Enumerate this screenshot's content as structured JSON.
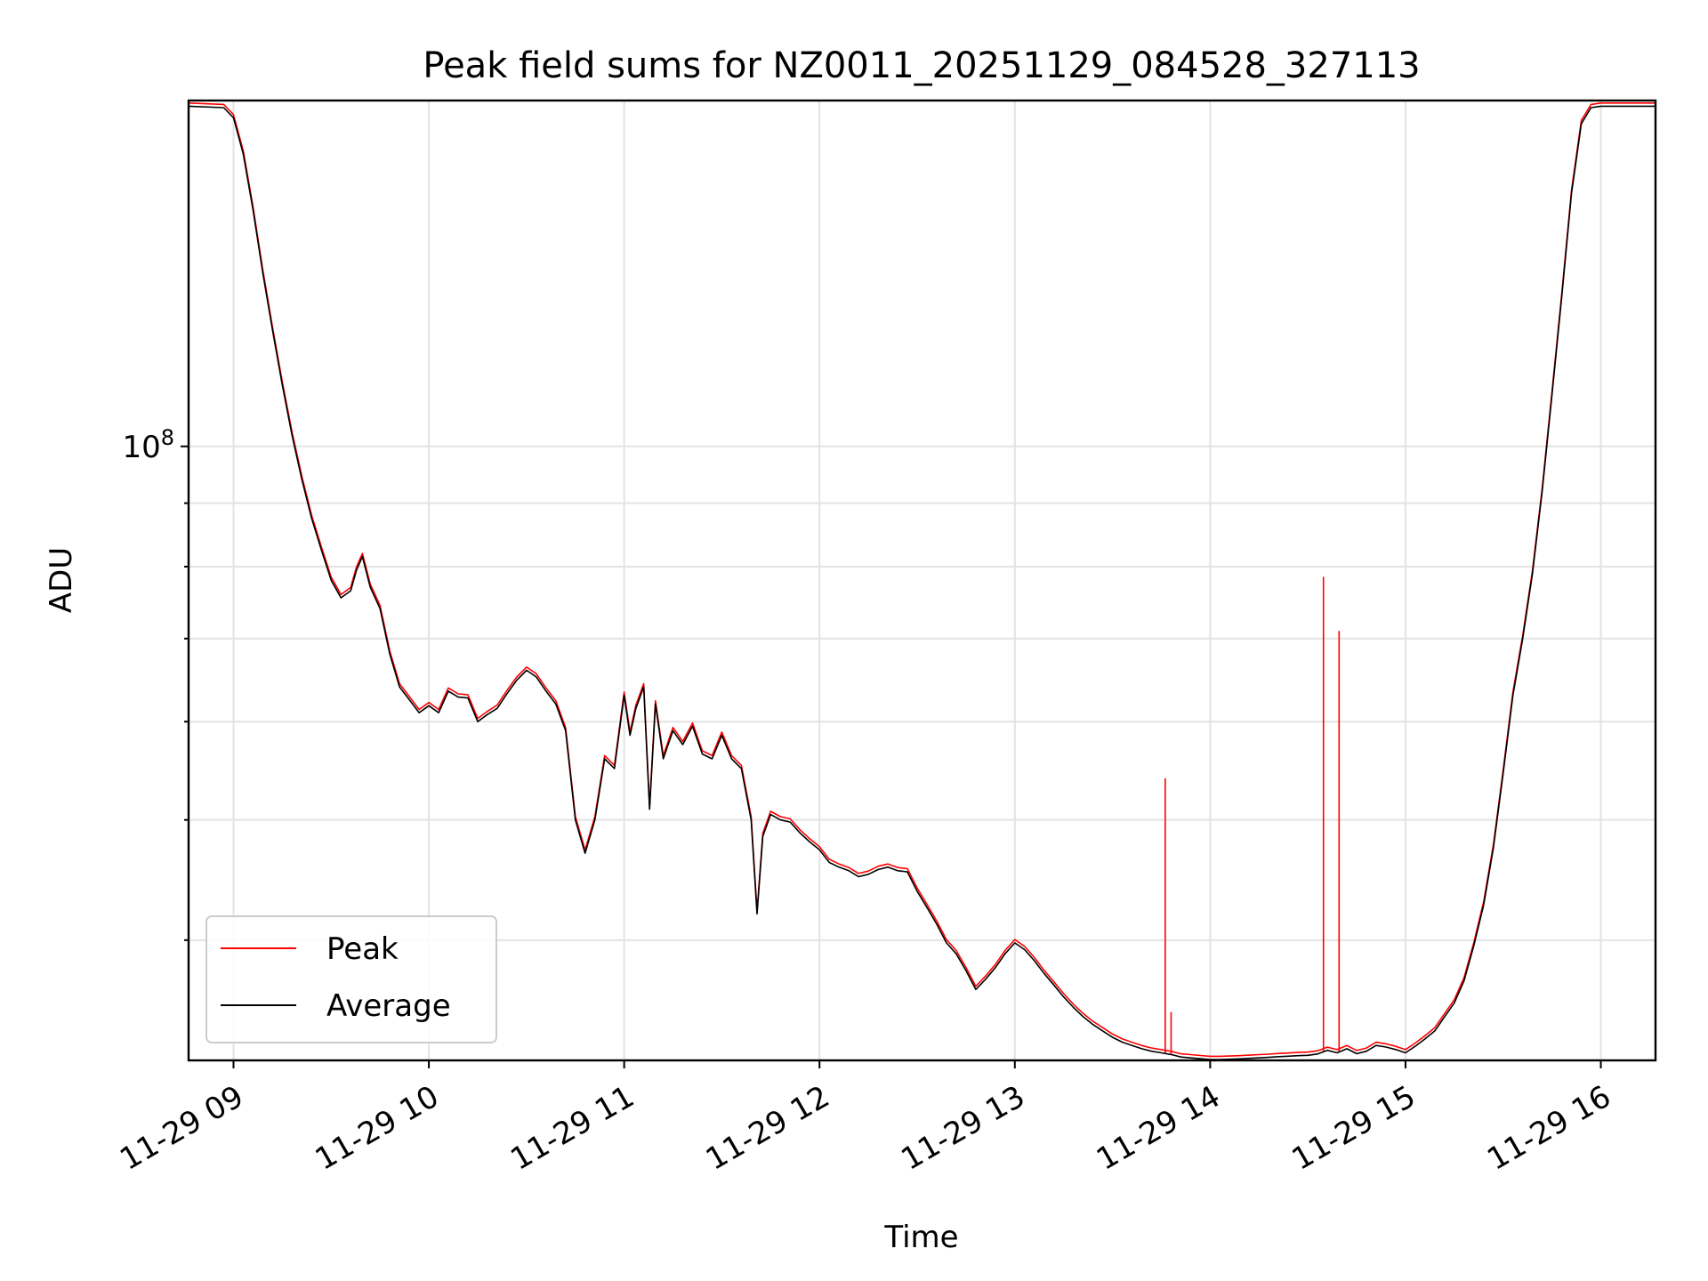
{
  "chart_data": {
    "type": "line",
    "title": "Peak field sums for NZ0011_20251129_084528_327113",
    "xlabel": "Time",
    "ylabel": "ADU",
    "x_ticks": [
      "11-29 09",
      "11-29 10",
      "11-29 11",
      "11-29 12",
      "11-29 13",
      "11-29 14",
      "11-29 15",
      "11-29 16"
    ],
    "x_tick_hours": [
      9,
      10,
      11,
      12,
      13,
      14,
      15,
      16
    ],
    "xlim": [
      8.77,
      16.28
    ],
    "y_scale": "log",
    "ylim": [
      32000000,
      190000000
    ],
    "y_major_ticks": [
      {
        "value": 100000000,
        "base": "10",
        "exp": "8"
      }
    ],
    "y_minor_ticks": [
      40000000,
      50000000,
      60000000,
      70000000,
      80000000,
      90000000
    ],
    "grid": true,
    "legend": {
      "position": "lower-left",
      "entries": [
        "Peak",
        "Average"
      ]
    },
    "colors": {
      "Peak": "#ff0000",
      "Average": "#000000"
    },
    "series": [
      {
        "name": "Average",
        "points": [
          [
            8.77,
            188000000
          ],
          [
            8.95,
            187500000
          ],
          [
            9.0,
            184000000
          ],
          [
            9.05,
            172000000
          ],
          [
            9.1,
            155000000
          ],
          [
            9.15,
            138000000
          ],
          [
            9.2,
            124000000
          ],
          [
            9.25,
            112000000
          ],
          [
            9.3,
            102000000
          ],
          [
            9.35,
            94000000
          ],
          [
            9.4,
            87500000
          ],
          [
            9.45,
            82500000
          ],
          [
            9.5,
            78000000
          ],
          [
            9.55,
            75500000
          ],
          [
            9.6,
            76500000
          ],
          [
            9.63,
            79500000
          ],
          [
            9.66,
            81500000
          ],
          [
            9.7,
            77000000
          ],
          [
            9.75,
            74000000
          ],
          [
            9.8,
            68000000
          ],
          [
            9.85,
            64000000
          ],
          [
            9.9,
            62500000
          ],
          [
            9.95,
            61000000
          ],
          [
            10.0,
            61800000
          ],
          [
            10.05,
            61000000
          ],
          [
            10.1,
            63500000
          ],
          [
            10.15,
            62800000
          ],
          [
            10.2,
            62700000
          ],
          [
            10.25,
            60000000
          ],
          [
            10.3,
            60800000
          ],
          [
            10.35,
            61500000
          ],
          [
            10.4,
            63200000
          ],
          [
            10.45,
            64800000
          ],
          [
            10.5,
            66000000
          ],
          [
            10.55,
            65200000
          ],
          [
            10.6,
            63500000
          ],
          [
            10.65,
            62000000
          ],
          [
            10.7,
            59000000
          ],
          [
            10.75,
            50000000
          ],
          [
            10.8,
            47000000
          ],
          [
            10.85,
            50000000
          ],
          [
            10.9,
            56000000
          ],
          [
            10.95,
            55000000
          ],
          [
            11.0,
            63000000
          ],
          [
            11.03,
            58500000
          ],
          [
            11.06,
            61500000
          ],
          [
            11.1,
            64000000
          ],
          [
            11.13,
            51000000
          ],
          [
            11.16,
            62000000
          ],
          [
            11.2,
            56000000
          ],
          [
            11.25,
            59000000
          ],
          [
            11.3,
            57500000
          ],
          [
            11.35,
            59500000
          ],
          [
            11.4,
            56500000
          ],
          [
            11.45,
            56000000
          ],
          [
            11.5,
            58500000
          ],
          [
            11.55,
            56000000
          ],
          [
            11.6,
            55000000
          ],
          [
            11.65,
            50000000
          ],
          [
            11.68,
            42000000
          ],
          [
            11.71,
            48500000
          ],
          [
            11.75,
            50500000
          ],
          [
            11.8,
            50000000
          ],
          [
            11.85,
            49800000
          ],
          [
            11.9,
            48800000
          ],
          [
            11.95,
            48000000
          ],
          [
            12.0,
            47300000
          ],
          [
            12.05,
            46200000
          ],
          [
            12.1,
            45800000
          ],
          [
            12.15,
            45500000
          ],
          [
            12.2,
            45000000
          ],
          [
            12.25,
            45200000
          ],
          [
            12.3,
            45600000
          ],
          [
            12.35,
            45800000
          ],
          [
            12.4,
            45500000
          ],
          [
            12.45,
            45400000
          ],
          [
            12.5,
            43800000
          ],
          [
            12.55,
            42500000
          ],
          [
            12.6,
            41200000
          ],
          [
            12.65,
            39800000
          ],
          [
            12.7,
            39000000
          ],
          [
            12.75,
            37800000
          ],
          [
            12.8,
            36500000
          ],
          [
            12.85,
            37200000
          ],
          [
            12.9,
            38000000
          ],
          [
            12.95,
            39000000
          ],
          [
            13.0,
            39800000
          ],
          [
            13.05,
            39300000
          ],
          [
            13.1,
            38500000
          ],
          [
            13.15,
            37600000
          ],
          [
            13.2,
            36800000
          ],
          [
            13.25,
            36000000
          ],
          [
            13.3,
            35300000
          ],
          [
            13.35,
            34700000
          ],
          [
            13.4,
            34200000
          ],
          [
            13.45,
            33800000
          ],
          [
            13.5,
            33400000
          ],
          [
            13.55,
            33100000
          ],
          [
            13.6,
            32900000
          ],
          [
            13.65,
            32700000
          ],
          [
            13.7,
            32550000
          ],
          [
            13.75,
            32450000
          ],
          [
            13.8,
            32350000
          ],
          [
            13.85,
            32200000
          ],
          [
            13.9,
            32150000
          ],
          [
            13.95,
            32100000
          ],
          [
            14.0,
            32050000
          ],
          [
            14.05,
            32050000
          ],
          [
            14.1,
            32070000
          ],
          [
            14.15,
            32090000
          ],
          [
            14.2,
            32120000
          ],
          [
            14.25,
            32150000
          ],
          [
            14.3,
            32180000
          ],
          [
            14.35,
            32220000
          ],
          [
            14.4,
            32250000
          ],
          [
            14.45,
            32280000
          ],
          [
            14.5,
            32300000
          ],
          [
            14.55,
            32380000
          ],
          [
            14.6,
            32600000
          ],
          [
            14.65,
            32450000
          ],
          [
            14.7,
            32700000
          ],
          [
            14.75,
            32400000
          ],
          [
            14.8,
            32550000
          ],
          [
            14.85,
            32900000
          ],
          [
            14.9,
            32800000
          ],
          [
            14.95,
            32650000
          ],
          [
            15.0,
            32450000
          ],
          [
            15.05,
            32850000
          ],
          [
            15.1,
            33300000
          ],
          [
            15.15,
            33800000
          ],
          [
            15.2,
            34700000
          ],
          [
            15.25,
            35600000
          ],
          [
            15.3,
            37100000
          ],
          [
            15.35,
            39600000
          ],
          [
            15.4,
            42700000
          ],
          [
            15.45,
            47500000
          ],
          [
            15.5,
            54500000
          ],
          [
            15.55,
            63000000
          ],
          [
            15.6,
            70000000
          ],
          [
            15.65,
            79000000
          ],
          [
            15.7,
            92000000
          ],
          [
            15.75,
            110000000
          ],
          [
            15.8,
            132000000
          ],
          [
            15.85,
            160000000
          ],
          [
            15.9,
            182000000
          ],
          [
            15.95,
            187500000
          ],
          [
            16.0,
            188000000
          ],
          [
            16.28,
            188000000
          ]
        ]
      },
      {
        "name": "Peak",
        "spikes": [
          [
            13.77,
            54000000
          ],
          [
            13.8,
            35000000
          ],
          [
            14.58,
            78500000
          ],
          [
            14.66,
            71000000
          ]
        ]
      }
    ]
  }
}
